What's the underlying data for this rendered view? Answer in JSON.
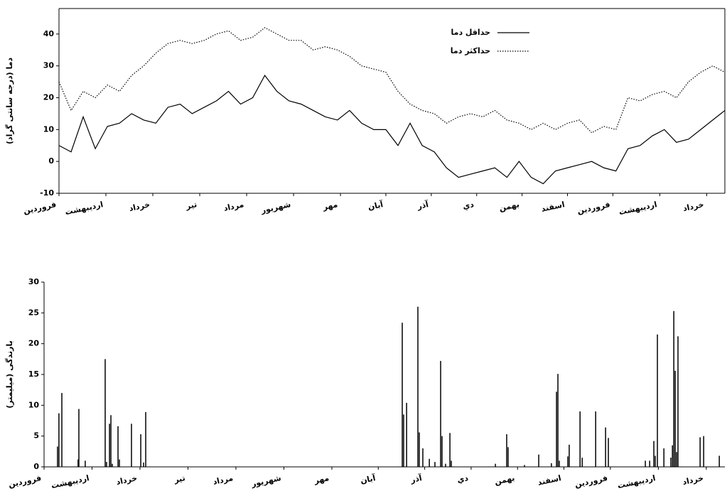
{
  "chart_data": [
    {
      "type": "line",
      "ylabel": "دما (درجه سانتی گراد)",
      "frame": true,
      "xlim": [
        0,
        440
      ],
      "ylim": [
        -10,
        48
      ],
      "yticks": [
        -10,
        0,
        10,
        20,
        30,
        40
      ],
      "xticks": [
        {
          "value": 0,
          "label": "فروردين"
        },
        {
          "value": 31,
          "label": "ارديبهشت"
        },
        {
          "value": 62,
          "label": "خرداد"
        },
        {
          "value": 93,
          "label": "تير"
        },
        {
          "value": 124,
          "label": "مرداد"
        },
        {
          "value": 155,
          "label": "شهريور"
        },
        {
          "value": 186,
          "label": "مهر"
        },
        {
          "value": 216,
          "label": "آبان"
        },
        {
          "value": 246,
          "label": "آذر"
        },
        {
          "value": 276,
          "label": "دي"
        },
        {
          "value": 306,
          "label": "بهمن"
        },
        {
          "value": 336,
          "label": "اسفند"
        },
        {
          "value": 366,
          "label": "فروردين"
        },
        {
          "value": 397,
          "label": "ارديبهشت"
        },
        {
          "value": 428,
          "label": "خرداد"
        }
      ],
      "x": [
        0,
        8,
        16,
        24,
        32,
        40,
        48,
        56,
        64,
        72,
        80,
        88,
        96,
        104,
        112,
        120,
        128,
        136,
        144,
        152,
        160,
        168,
        176,
        184,
        192,
        200,
        208,
        216,
        224,
        232,
        240,
        248,
        256,
        264,
        272,
        280,
        288,
        296,
        304,
        312,
        320,
        328,
        336,
        344,
        352,
        360,
        368,
        376,
        384,
        392,
        400,
        408,
        416,
        424,
        432,
        440
      ],
      "series": [
        {
          "name": "حداقل دما",
          "color": "#000000",
          "line_style": "solid",
          "values": [
            5,
            3,
            14,
            4,
            11,
            12,
            15,
            13,
            12,
            17,
            18,
            15,
            17,
            19,
            22,
            18,
            20,
            27,
            22,
            19,
            18,
            16,
            14,
            13,
            16,
            12,
            10,
            10,
            5,
            12,
            5,
            3,
            -2,
            -5,
            -4,
            -3,
            -2,
            -5,
            0,
            -5,
            -7,
            -3,
            -2,
            -1,
            0,
            -2,
            -3,
            4,
            5,
            8,
            10,
            6,
            7,
            10,
            13,
            16
          ]
        },
        {
          "name": "حداکثر دما",
          "color": "#000000",
          "line_style": "dotted",
          "values": [
            25,
            16,
            22,
            20,
            24,
            22,
            27,
            30,
            34,
            37,
            38,
            37,
            38,
            40,
            41,
            38,
            39,
            42,
            40,
            38,
            38,
            35,
            36,
            35,
            33,
            30,
            29,
            28,
            22,
            18,
            16,
            15,
            12,
            14,
            15,
            14,
            16,
            13,
            12,
            10,
            12,
            10,
            12,
            13,
            9,
            11,
            10,
            20,
            19,
            21,
            22,
            20,
            25,
            28,
            30,
            28
          ]
        }
      ]
    },
    {
      "type": "bar",
      "ylabel": "بارندگی (میلیمتر)",
      "frame": false,
      "color": "#000000",
      "xlim": [
        0,
        440
      ],
      "ylim": [
        0,
        30
      ],
      "yticks": [
        0,
        5,
        10,
        15,
        20,
        25,
        30
      ],
      "xticks": [
        {
          "value": 0,
          "label": "فروردين"
        },
        {
          "value": 31,
          "label": "ارديبهشت"
        },
        {
          "value": 62,
          "label": "خرداد"
        },
        {
          "value": 93,
          "label": "تير"
        },
        {
          "value": 124,
          "label": "مرداد"
        },
        {
          "value": 155,
          "label": "شهريور"
        },
        {
          "value": 186,
          "label": "مهر"
        },
        {
          "value": 216,
          "label": "آبان"
        },
        {
          "value": 246,
          "label": "آذر"
        },
        {
          "value": 276,
          "label": "دي"
        },
        {
          "value": 306,
          "label": "بهمن"
        },
        {
          "value": 336,
          "label": "اسفند"
        },
        {
          "value": 366,
          "label": "فروردين"
        },
        {
          "value": 397,
          "label": "ارديبهشت"
        },
        {
          "value": 428,
          "label": "خرداد"
        }
      ],
      "x": [
        8.7,
        9.6,
        11.5,
        22.0,
        22.5,
        26.6,
        39.5,
        40.4,
        42.3,
        43.2,
        44.1,
        47.8,
        48.7,
        56.5,
        62.5,
        64.3,
        65.7,
        231.5,
        232.4,
        234.3,
        241.6,
        242.5,
        244.8,
        249.0,
        252.6,
        256.3,
        257.2,
        259.5,
        262.3,
        263.2,
        291.7,
        299.0,
        299.9,
        310.5,
        319.7,
        327.9,
        331.2,
        332.1,
        333.0,
        338.5,
        339.4,
        346.4,
        347.8,
        356.5,
        362.9,
        364.7,
        388.6,
        391.4,
        394.1,
        395.0,
        396.4,
        400.6,
        405.1,
        406.1,
        407.0,
        407.9,
        408.8,
        409.7,
        424.0,
        426.3,
        436.4
      ],
      "values": [
        3.3,
        8.7,
        12,
        1.2,
        9.4,
        1,
        17.5,
        0.8,
        7,
        8.4,
        0.5,
        6.6,
        1.2,
        7,
        5.3,
        0.7,
        8.9,
        23.4,
        8.5,
        10.4,
        26,
        5.6,
        3,
        1.3,
        0.8,
        17.2,
        5,
        0.5,
        5.5,
        1,
        0.5,
        5.3,
        3.2,
        0.3,
        2,
        0.6,
        12.2,
        15.1,
        1,
        1.7,
        3.6,
        9,
        1.5,
        9,
        6.4,
        4.7,
        1,
        1,
        4.2,
        1.8,
        21.5,
        3,
        1.5,
        3.5,
        25.3,
        15.6,
        2.4,
        21.2,
        4.8,
        5,
        1.8
      ]
    }
  ]
}
